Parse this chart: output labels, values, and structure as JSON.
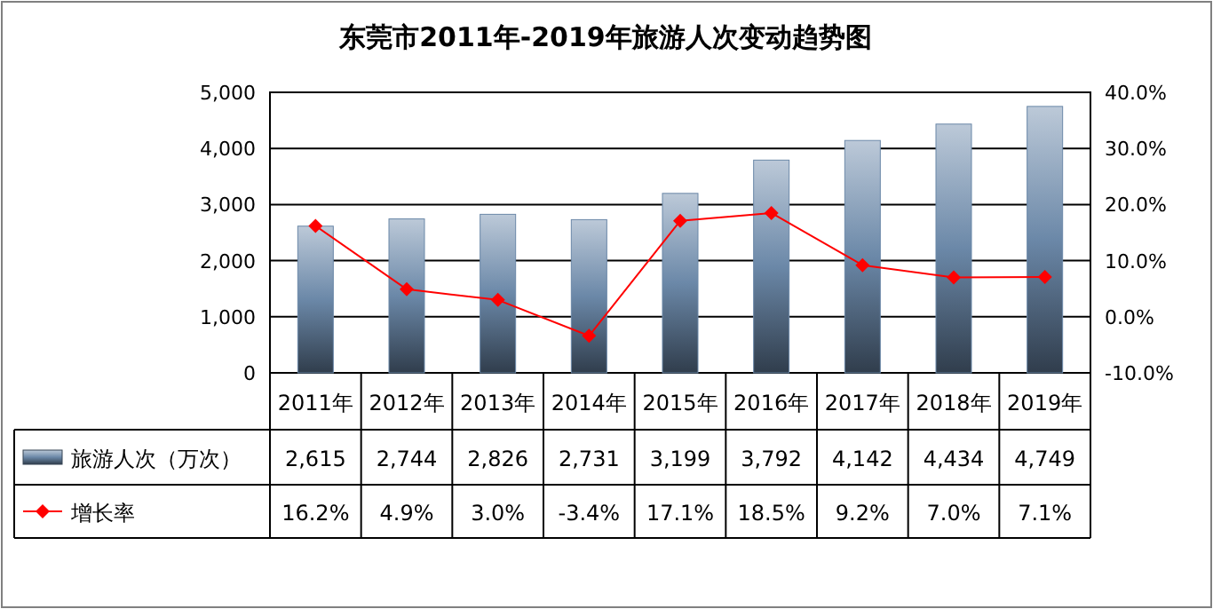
{
  "chart_data": {
    "type": "bar",
    "title": "东莞市2011年-2019年旅游人次变动趋势图",
    "categories": [
      "2011年",
      "2012年",
      "2013年",
      "2014年",
      "2015年",
      "2016年",
      "2017年",
      "2018年",
      "2019年"
    ],
    "series": [
      {
        "name": "旅游人次（万次）",
        "color": "#6b88a8",
        "values": [
          2615,
          2744,
          2826,
          2731,
          3199,
          3792,
          4142,
          4434,
          4749
        ],
        "value_labels": [
          "2,615",
          "2,744",
          "2,826",
          "2,731",
          "3,199",
          "3,792",
          "4,142",
          "4,434",
          "4,749"
        ]
      },
      {
        "name": "增长率",
        "type": "line",
        "axis": "y2",
        "color": "#ff0000",
        "values": [
          16.2,
          4.9,
          3.0,
          -3.4,
          17.1,
          18.5,
          9.2,
          7.0,
          7.1
        ],
        "value_labels": [
          "16.2%",
          "4.9%",
          "3.0%",
          "-3.4%",
          "17.1%",
          "18.5%",
          "9.2%",
          "7.0%",
          "7.1%"
        ]
      }
    ],
    "ylim": [
      0,
      5000
    ],
    "yticks": [
      0,
      {
        "value": 1000,
        "label": "1,000"
      },
      {
        "value": 2000,
        "label": "2,000"
      },
      {
        "value": 3000,
        "label": "3,000"
      },
      {
        "value": 4000,
        "label": "4,000"
      },
      {
        "value": 5000,
        "label": "5,000"
      }
    ],
    "y2lim": [
      -10,
      40
    ],
    "y2ticks": [
      {
        "value": -10,
        "label": "-10.0%"
      },
      {
        "value": 0,
        "label": "0.0%"
      },
      {
        "value": 10,
        "label": "10.0%"
      },
      {
        "value": 20,
        "label": "20.0%"
      },
      {
        "value": 30,
        "label": "30.0%"
      },
      {
        "value": 40,
        "label": "40.0%"
      }
    ],
    "grid": "y",
    "legend": "bottom",
    "marker": "diamond",
    "line_style": "solid"
  }
}
